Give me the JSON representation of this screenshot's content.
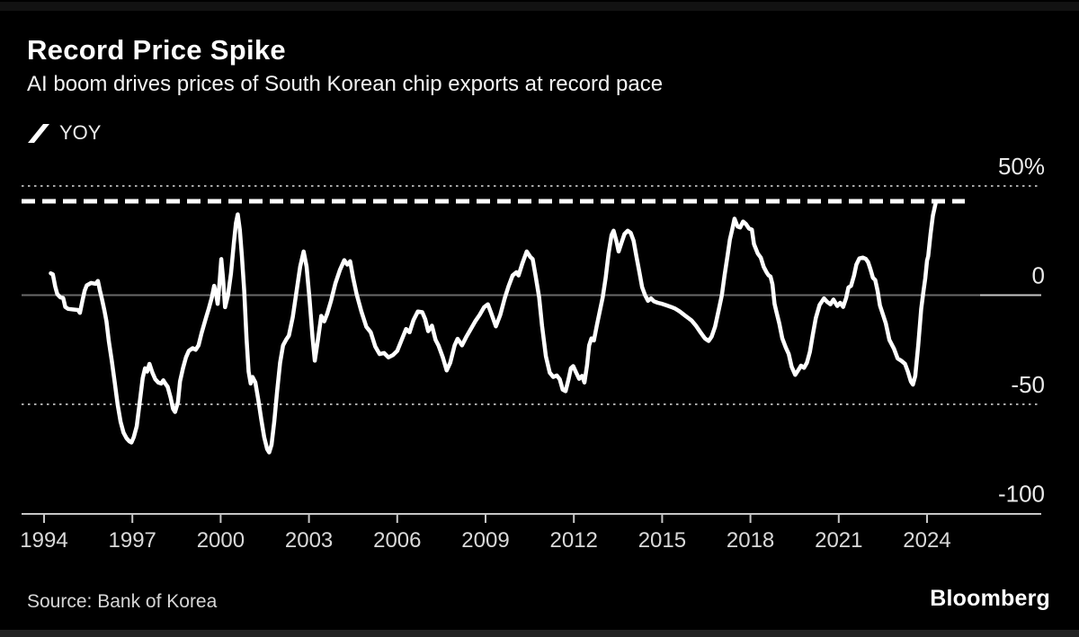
{
  "page": {
    "background": "#000000"
  },
  "legend": {
    "label": "YOY",
    "marker_color": "#ffffff"
  },
  "footer": {
    "source": "Source: Bank of Korea",
    "brand": "Bloomberg"
  },
  "chart_data": {
    "type": "line",
    "title": "Record Price Spike",
    "subtitle": "AI boom drives prices of South Korean chip exports at record pace",
    "xlabel": "",
    "ylabel": "",
    "legend_position": "top-left",
    "grid": {
      "dotted_values": [
        50,
        -50
      ],
      "zero_line_value": 0
    },
    "record_line": {
      "value": 43,
      "style": "dashed"
    },
    "x_ticks": [
      1994,
      1997,
      2000,
      2003,
      2006,
      2009,
      2012,
      2015,
      2018,
      2021,
      2024
    ],
    "y_tick_labels": [
      {
        "text": "50%",
        "value": 50
      },
      {
        "text": "0",
        "value": 0
      },
      {
        "text": "-50",
        "value": -50
      },
      {
        "text": "-100",
        "value": -100
      }
    ],
    "xlim": [
      1993.2,
      2025.8
    ],
    "ylim": [
      -100,
      55
    ],
    "colors": {
      "line": "#ffffff",
      "record_line": "#ffffff",
      "dotted_grid": "#a8a8a8",
      "zero_line": "#6a6a6a",
      "axis": "#c6c6c6",
      "x_label": "#d9d9d9",
      "y_label": "#ebebeb"
    },
    "series": [
      {
        "name": "YOY",
        "color": "#ffffff",
        "points": [
          [
            1994.23,
            10
          ],
          [
            1994.3,
            9.5
          ],
          [
            1994.38,
            4
          ],
          [
            1994.45,
            0.5
          ],
          [
            1994.55,
            -1
          ],
          [
            1994.65,
            -1.3
          ],
          [
            1994.72,
            -5.4
          ],
          [
            1994.82,
            -6.3
          ],
          [
            1995.0,
            -6.6
          ],
          [
            1995.15,
            -6.8
          ],
          [
            1995.22,
            -8.1
          ],
          [
            1995.3,
            -2.7
          ],
          [
            1995.38,
            2.1
          ],
          [
            1995.45,
            4.5
          ],
          [
            1995.6,
            5.6
          ],
          [
            1995.75,
            5.2
          ],
          [
            1995.83,
            6.5
          ],
          [
            1995.9,
            2
          ],
          [
            1995.97,
            -2
          ],
          [
            1996.05,
            -7
          ],
          [
            1996.12,
            -12
          ],
          [
            1996.2,
            -21
          ],
          [
            1996.3,
            -30
          ],
          [
            1996.4,
            -40
          ],
          [
            1996.5,
            -50
          ],
          [
            1996.6,
            -58
          ],
          [
            1996.7,
            -63
          ],
          [
            1996.8,
            -65.5
          ],
          [
            1996.9,
            -67
          ],
          [
            1996.97,
            -67.5
          ],
          [
            1997.05,
            -65
          ],
          [
            1997.15,
            -60
          ],
          [
            1997.25,
            -49
          ],
          [
            1997.35,
            -38
          ],
          [
            1997.43,
            -33.5
          ],
          [
            1997.5,
            -35
          ],
          [
            1997.58,
            -31.5
          ],
          [
            1997.68,
            -35.5
          ],
          [
            1997.78,
            -38.5
          ],
          [
            1997.88,
            -40
          ],
          [
            1997.98,
            -40.5
          ],
          [
            1998.05,
            -39
          ],
          [
            1998.12,
            -40.5
          ],
          [
            1998.2,
            -42
          ],
          [
            1998.3,
            -47
          ],
          [
            1998.38,
            -52
          ],
          [
            1998.45,
            -53.5
          ],
          [
            1998.55,
            -49
          ],
          [
            1998.62,
            -39.5
          ],
          [
            1998.72,
            -33.5
          ],
          [
            1998.82,
            -28.5
          ],
          [
            1998.92,
            -25.5
          ],
          [
            1999.05,
            -24.3
          ],
          [
            1999.15,
            -25
          ],
          [
            1999.25,
            -23
          ],
          [
            1999.35,
            -17.5
          ],
          [
            1999.5,
            -10.5
          ],
          [
            1999.6,
            -6
          ],
          [
            1999.7,
            -1
          ],
          [
            1999.78,
            4.3
          ],
          [
            1999.85,
            0
          ],
          [
            1999.9,
            -4
          ],
          [
            1999.97,
            7
          ],
          [
            2000.02,
            16.5
          ],
          [
            2000.08,
            8
          ],
          [
            2000.15,
            -5.5
          ],
          [
            2000.25,
            0
          ],
          [
            2000.35,
            10
          ],
          [
            2000.45,
            24
          ],
          [
            2000.52,
            33
          ],
          [
            2000.58,
            37
          ],
          [
            2000.65,
            30
          ],
          [
            2000.72,
            18
          ],
          [
            2000.8,
            2
          ],
          [
            2000.88,
            -20
          ],
          [
            2000.95,
            -35
          ],
          [
            2001.02,
            -40.5
          ],
          [
            2001.08,
            -37.5
          ],
          [
            2001.18,
            -40
          ],
          [
            2001.28,
            -48
          ],
          [
            2001.38,
            -57
          ],
          [
            2001.48,
            -65
          ],
          [
            2001.58,
            -70.5
          ],
          [
            2001.65,
            -72
          ],
          [
            2001.73,
            -68.5
          ],
          [
            2001.82,
            -58
          ],
          [
            2001.92,
            -44
          ],
          [
            2002.02,
            -31
          ],
          [
            2002.12,
            -23
          ],
          [
            2002.22,
            -20.5
          ],
          [
            2002.32,
            -18.5
          ],
          [
            2002.45,
            -10
          ],
          [
            2002.58,
            2
          ],
          [
            2002.7,
            13
          ],
          [
            2002.82,
            20
          ],
          [
            2002.92,
            13
          ],
          [
            2003.02,
            -2
          ],
          [
            2003.12,
            -19
          ],
          [
            2003.2,
            -30
          ],
          [
            2003.3,
            -21
          ],
          [
            2003.42,
            -9.5
          ],
          [
            2003.52,
            -12
          ],
          [
            2003.62,
            -8.5
          ],
          [
            2003.75,
            -2.5
          ],
          [
            2003.9,
            5.5
          ],
          [
            2004.05,
            11.5
          ],
          [
            2004.2,
            16
          ],
          [
            2004.3,
            14
          ],
          [
            2004.4,
            15.5
          ],
          [
            2004.5,
            8
          ],
          [
            2004.62,
            0.5
          ],
          [
            2004.78,
            -7.5
          ],
          [
            2004.95,
            -14.5
          ],
          [
            2005.1,
            -17
          ],
          [
            2005.25,
            -23.5
          ],
          [
            2005.4,
            -27
          ],
          [
            2005.55,
            -26.5
          ],
          [
            2005.7,
            -28.5
          ],
          [
            2005.85,
            -27.5
          ],
          [
            2006.0,
            -25.5
          ],
          [
            2006.15,
            -20.5
          ],
          [
            2006.3,
            -15.5
          ],
          [
            2006.42,
            -17
          ],
          [
            2006.55,
            -11.5
          ],
          [
            2006.7,
            -7.5
          ],
          [
            2006.85,
            -7.8
          ],
          [
            2006.95,
            -11
          ],
          [
            2007.05,
            -16.5
          ],
          [
            2007.18,
            -14
          ],
          [
            2007.3,
            -20.5
          ],
          [
            2007.4,
            -23
          ],
          [
            2007.55,
            -28.5
          ],
          [
            2007.68,
            -34.5
          ],
          [
            2007.8,
            -31
          ],
          [
            2007.95,
            -23
          ],
          [
            2008.05,
            -20
          ],
          [
            2008.2,
            -23
          ],
          [
            2008.35,
            -19
          ],
          [
            2008.5,
            -15.5
          ],
          [
            2008.65,
            -12
          ],
          [
            2008.8,
            -9
          ],
          [
            2008.95,
            -5.5
          ],
          [
            2009.08,
            -4.2
          ],
          [
            2009.2,
            -8.5
          ],
          [
            2009.35,
            -14.3
          ],
          [
            2009.5,
            -9
          ],
          [
            2009.65,
            -1.5
          ],
          [
            2009.78,
            4
          ],
          [
            2009.92,
            9
          ],
          [
            2010.05,
            10.5
          ],
          [
            2010.12,
            9
          ],
          [
            2010.25,
            14.5
          ],
          [
            2010.4,
            20
          ],
          [
            2010.52,
            17.5
          ],
          [
            2010.6,
            16.5
          ],
          [
            2010.7,
            9
          ],
          [
            2010.82,
            -1
          ],
          [
            2010.92,
            -14
          ],
          [
            2011.05,
            -28
          ],
          [
            2011.18,
            -35.5
          ],
          [
            2011.3,
            -37.5
          ],
          [
            2011.42,
            -36.8
          ],
          [
            2011.52,
            -38.5
          ],
          [
            2011.62,
            -43.3
          ],
          [
            2011.72,
            -44
          ],
          [
            2011.82,
            -38.5
          ],
          [
            2011.9,
            -33.5
          ],
          [
            2011.98,
            -32.5
          ],
          [
            2012.08,
            -35.5
          ],
          [
            2012.18,
            -38.3
          ],
          [
            2012.28,
            -37
          ],
          [
            2012.36,
            -40
          ],
          [
            2012.45,
            -32
          ],
          [
            2012.52,
            -23
          ],
          [
            2012.6,
            -19.8
          ],
          [
            2012.68,
            -20.8
          ],
          [
            2012.78,
            -14
          ],
          [
            2012.88,
            -7.5
          ],
          [
            2012.98,
            -1
          ],
          [
            2013.08,
            8
          ],
          [
            2013.18,
            19
          ],
          [
            2013.28,
            27.5
          ],
          [
            2013.35,
            29.5
          ],
          [
            2013.45,
            24.5
          ],
          [
            2013.52,
            20
          ],
          [
            2013.62,
            24
          ],
          [
            2013.72,
            28
          ],
          [
            2013.83,
            29.5
          ],
          [
            2013.93,
            28.5
          ],
          [
            2014.03,
            25
          ],
          [
            2014.13,
            17.5
          ],
          [
            2014.23,
            10.3
          ],
          [
            2014.32,
            3.7
          ],
          [
            2014.42,
            0
          ],
          [
            2014.52,
            -2.6
          ],
          [
            2014.62,
            -1.5
          ],
          [
            2014.72,
            -2.8
          ],
          [
            2014.85,
            -3.5
          ],
          [
            2015.0,
            -4
          ],
          [
            2015.15,
            -4.7
          ],
          [
            2015.3,
            -5.4
          ],
          [
            2015.45,
            -6.2
          ],
          [
            2015.6,
            -7.5
          ],
          [
            2015.8,
            -9.6
          ],
          [
            2016.0,
            -11.6
          ],
          [
            2016.15,
            -14
          ],
          [
            2016.3,
            -17
          ],
          [
            2016.45,
            -19.8
          ],
          [
            2016.58,
            -21
          ],
          [
            2016.68,
            -19
          ],
          [
            2016.8,
            -14.4
          ],
          [
            2016.92,
            -7
          ],
          [
            2017.03,
            0
          ],
          [
            2017.12,
            9
          ],
          [
            2017.22,
            18
          ],
          [
            2017.3,
            25.4
          ],
          [
            2017.38,
            30
          ],
          [
            2017.46,
            35
          ],
          [
            2017.56,
            31.5
          ],
          [
            2017.65,
            31
          ],
          [
            2017.75,
            33.7
          ],
          [
            2017.85,
            32.5
          ],
          [
            2017.95,
            30.5
          ],
          [
            2018.05,
            30
          ],
          [
            2018.12,
            23.4
          ],
          [
            2018.25,
            19
          ],
          [
            2018.35,
            17.2
          ],
          [
            2018.45,
            13
          ],
          [
            2018.55,
            10.4
          ],
          [
            2018.62,
            9
          ],
          [
            2018.68,
            8.5
          ],
          [
            2018.75,
            4.9
          ],
          [
            2018.82,
            -4
          ],
          [
            2018.88,
            -7.5
          ],
          [
            2018.98,
            -13
          ],
          [
            2019.08,
            -19.8
          ],
          [
            2019.2,
            -24
          ],
          [
            2019.3,
            -27
          ],
          [
            2019.4,
            -32.8
          ],
          [
            2019.52,
            -36.5
          ],
          [
            2019.62,
            -34.5
          ],
          [
            2019.72,
            -32.3
          ],
          [
            2019.82,
            -33.3
          ],
          [
            2019.92,
            -31
          ],
          [
            2020.02,
            -26
          ],
          [
            2020.12,
            -18
          ],
          [
            2020.22,
            -10.5
          ],
          [
            2020.35,
            -4.5
          ],
          [
            2020.5,
            -1.5
          ],
          [
            2020.6,
            -3
          ],
          [
            2020.72,
            -4.2
          ],
          [
            2020.82,
            -2
          ],
          [
            2020.95,
            -5
          ],
          [
            2021.05,
            -3.5
          ],
          [
            2021.15,
            -5.4
          ],
          [
            2021.25,
            -1.3
          ],
          [
            2021.33,
            3.5
          ],
          [
            2021.42,
            4.3
          ],
          [
            2021.52,
            9
          ],
          [
            2021.6,
            14
          ],
          [
            2021.7,
            16.8
          ],
          [
            2021.82,
            17.2
          ],
          [
            2021.92,
            16.6
          ],
          [
            2022.0,
            15.1
          ],
          [
            2022.08,
            11.7
          ],
          [
            2022.16,
            8
          ],
          [
            2022.24,
            6.9
          ],
          [
            2022.32,
            2
          ],
          [
            2022.4,
            -4.7
          ],
          [
            2022.5,
            -8.8
          ],
          [
            2022.6,
            -13
          ],
          [
            2022.72,
            -20.5
          ],
          [
            2022.88,
            -24.6
          ],
          [
            2023.0,
            -29
          ],
          [
            2023.12,
            -30
          ],
          [
            2023.25,
            -31.5
          ],
          [
            2023.35,
            -35
          ],
          [
            2023.45,
            -39.5
          ],
          [
            2023.52,
            -41
          ],
          [
            2023.6,
            -37
          ],
          [
            2023.7,
            -23
          ],
          [
            2023.8,
            -6.3
          ],
          [
            2023.88,
            2
          ],
          [
            2023.94,
            7.6
          ],
          [
            2024.0,
            15.8
          ],
          [
            2024.04,
            17.8
          ],
          [
            2024.12,
            28
          ],
          [
            2024.2,
            36.4
          ],
          [
            2024.3,
            42.6
          ]
        ]
      }
    ]
  }
}
